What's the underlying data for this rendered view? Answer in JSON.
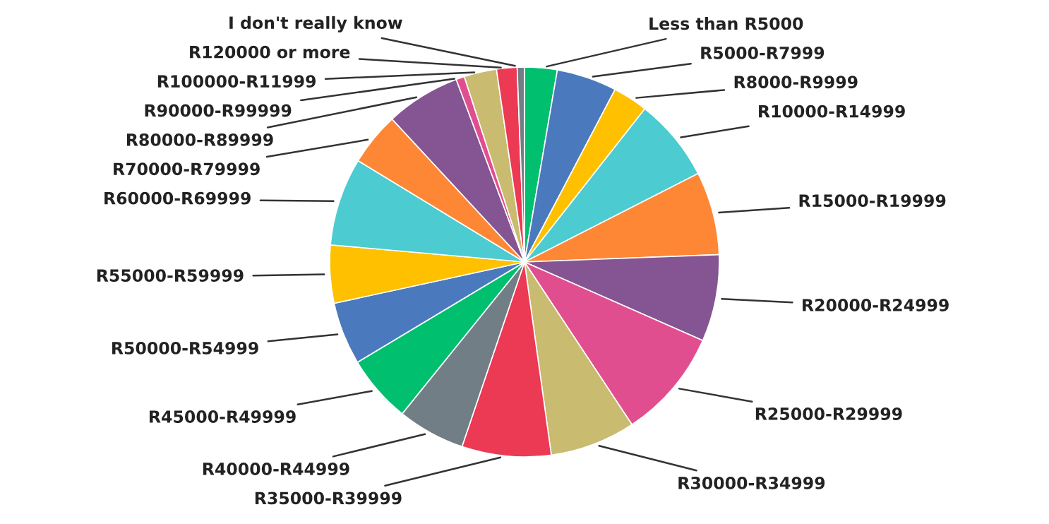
{
  "chart_data": {
    "type": "pie",
    "categories": [
      "Less than R5000",
      "R5000-R7999",
      "R8000-R9999",
      "R10000-R14999",
      "R15000-R19999",
      "R20000-R24999",
      "R25000-R29999",
      "R30000-R34999",
      "R35000-R39999",
      "R40000-R44999",
      "R45000-R49999",
      "R50000-R54999",
      "R55000-R59999",
      "R60000-R69999",
      "R70000-R79999",
      "R80000-R89999",
      "R90000-R99999",
      "R100000-R11999",
      "R120000 or more",
      "I don't really know"
    ],
    "values": [
      2.7,
      5.0,
      2.9,
      6.9,
      6.9,
      7.2,
      9.1,
      7.1,
      7.4,
      5.6,
      5.6,
      5.2,
      4.8,
      7.3,
      4.4,
      6.2,
      0.7,
      2.7,
      1.7,
      0.6
    ],
    "colors": [
      "#00bf6f",
      "#4b79bd",
      "#ffc000",
      "#4ccbd1",
      "#fe8736",
      "#855593",
      "#e14e8f",
      "#c9bb6f",
      "#ec3954",
      "#727e85",
      "#00bf6f",
      "#4b79bd",
      "#ffc000",
      "#4ccbd1",
      "#fe8736",
      "#855593",
      "#e14e8f",
      "#c9bb6f",
      "#ec3954",
      "#727e85"
    ]
  }
}
